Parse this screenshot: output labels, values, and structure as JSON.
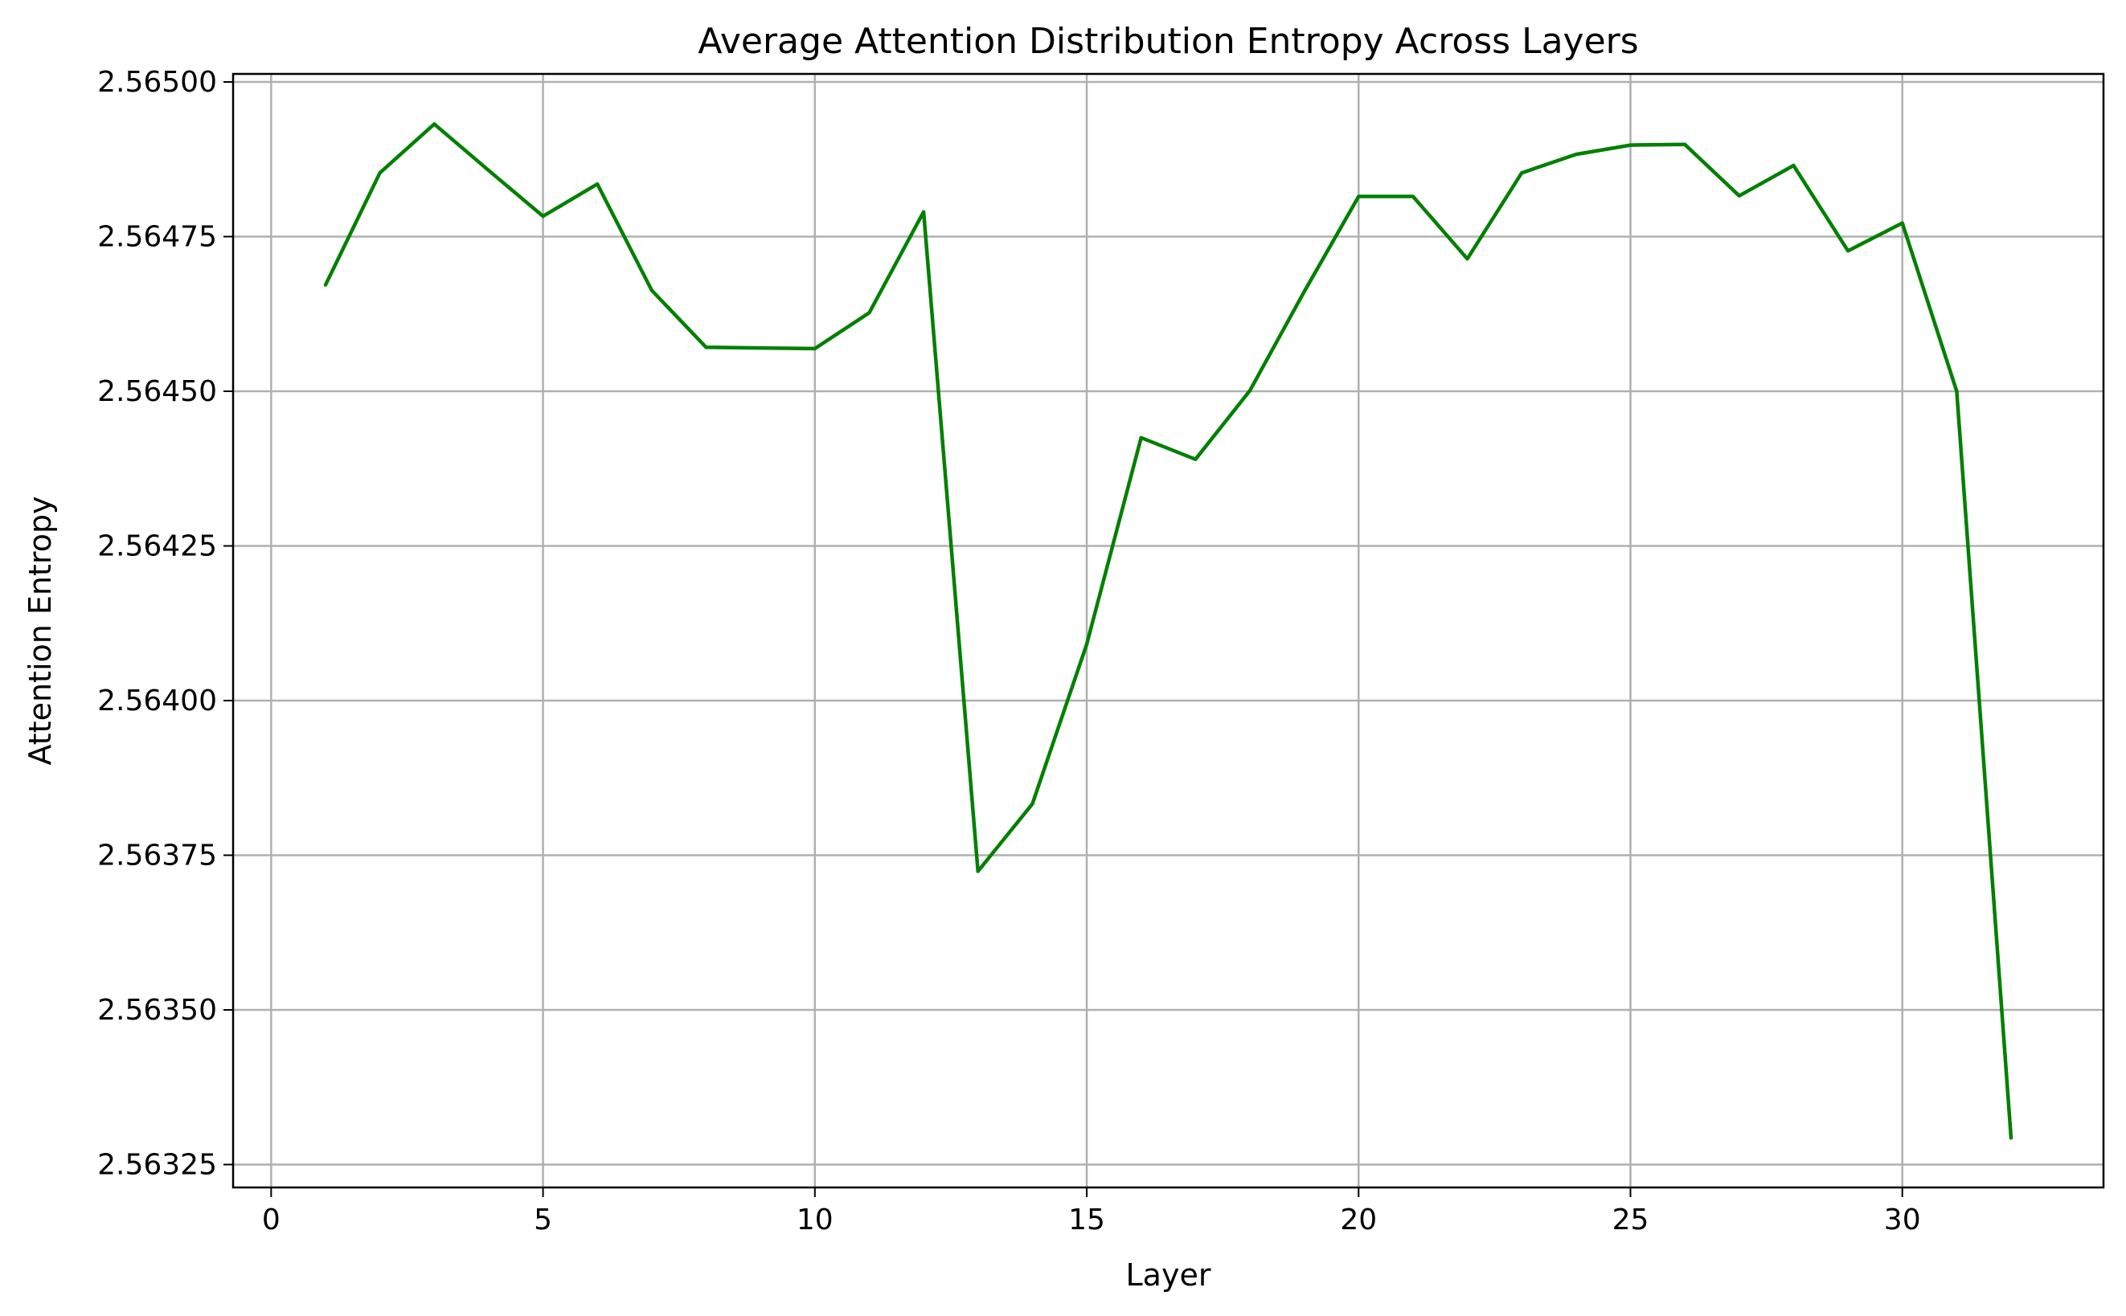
{
  "chart_data": {
    "type": "line",
    "title": "Average Attention Distribution Entropy Across Layers",
    "xlabel": "Layer",
    "ylabel": "Attention Entropy",
    "xlim": [
      -0.7,
      33.7
    ],
    "ylim": [
      2.563213,
      2.565013
    ],
    "x_ticks": [
      0,
      5,
      10,
      15,
      20,
      25,
      30
    ],
    "x_tick_labels": [
      "0",
      "5",
      "10",
      "15",
      "20",
      "25",
      "30"
    ],
    "y_ticks": [
      2.56325,
      2.5635,
      2.56375,
      2.564,
      2.56425,
      2.5645,
      2.56475,
      2.565
    ],
    "y_tick_labels": [
      "2.56325",
      "2.56350",
      "2.56375",
      "2.56400",
      "2.56425",
      "2.56450",
      "2.56475",
      "2.56500"
    ],
    "grid": true,
    "colors": {
      "line": "#008000",
      "grid": "#b0b0b0"
    },
    "series": [
      {
        "x": [
          1,
          2,
          3,
          4,
          5,
          6,
          7,
          8,
          9,
          10,
          11,
          12,
          13,
          14,
          15,
          16,
          17,
          18,
          19,
          20,
          21,
          22,
          23,
          24,
          25,
          26,
          27,
          28,
          29,
          30,
          31,
          32
        ],
        "y": [
          2.564672,
          2.564853,
          2.564932,
          2.564857,
          2.564783,
          2.564835,
          2.564663,
          2.564571,
          2.56457,
          2.564569,
          2.564627,
          2.56479,
          2.563724,
          2.563833,
          2.564091,
          2.564425,
          2.56439,
          2.564501,
          2.564661,
          2.564815,
          2.564815,
          2.564714,
          2.564853,
          2.564883,
          2.564898,
          2.564899,
          2.564816,
          2.564865,
          2.564727,
          2.564772,
          2.5645,
          2.563293
        ]
      }
    ]
  }
}
